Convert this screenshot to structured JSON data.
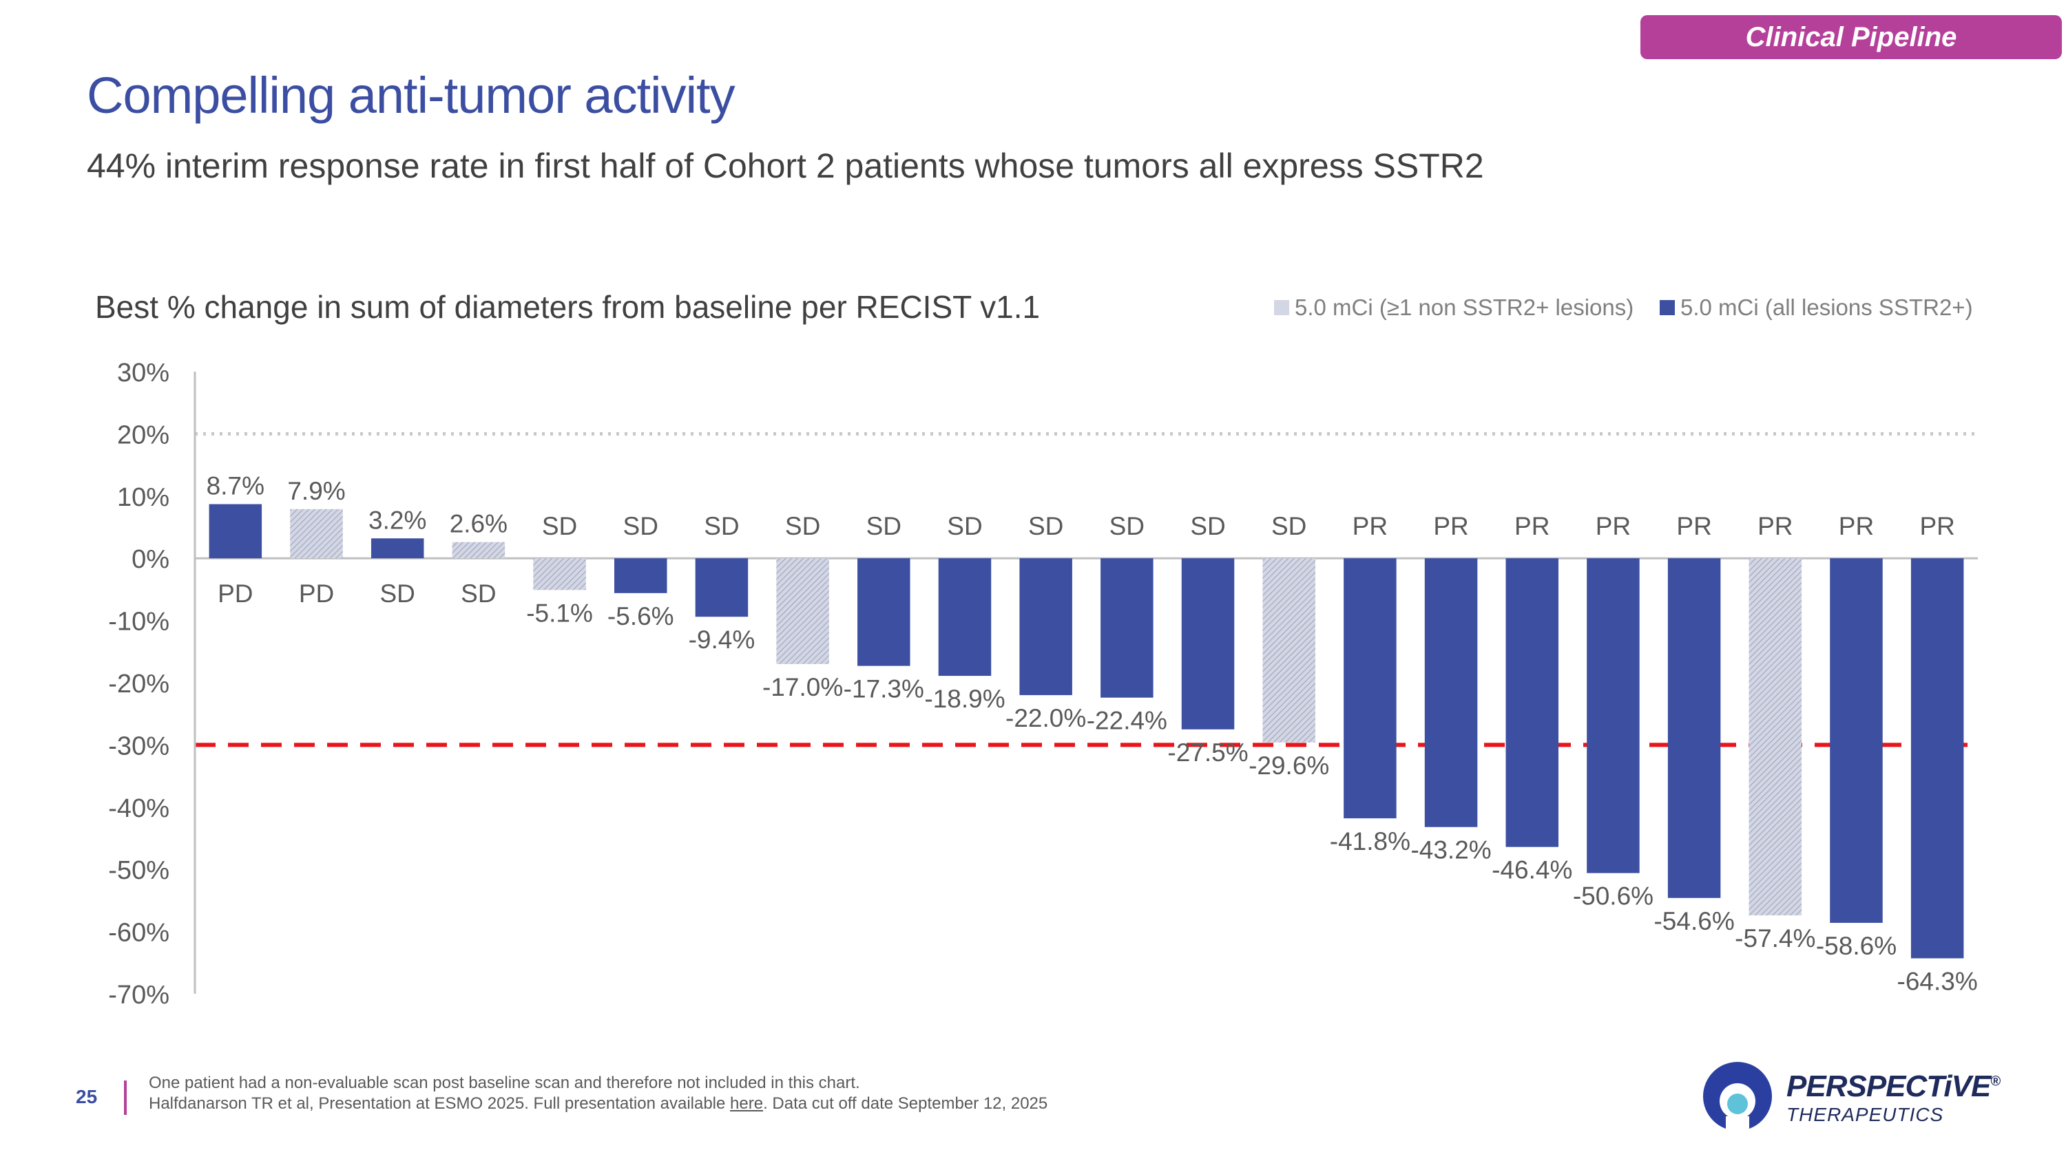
{
  "header": {
    "section_tag": "Clinical Pipeline",
    "title": "Compelling anti-tumor activity",
    "subtitle": "44% interim response rate in first half of Cohort 2 patients whose tumors all express SSTR2"
  },
  "chart_data": {
    "type": "bar",
    "title": "Best % change in sum of diameters from baseline per RECIST v1.1",
    "ylabel": "",
    "xlabel": "",
    "ylim": [
      -70,
      30
    ],
    "yticks": [
      30,
      20,
      10,
      0,
      -10,
      -20,
      -30,
      -40,
      -50,
      -60,
      -70
    ],
    "ytick_labels": [
      "30%",
      "20%",
      "10%",
      "0%",
      "-10%",
      "-20%",
      "-30%",
      "-40%",
      "-50%",
      "-60%",
      "-70%"
    ],
    "legend": [
      {
        "label": "5.0 mCi (≥1 non SSTR2+ lesions)",
        "style": "hatched",
        "color": "#c9cde0"
      },
      {
        "label": "5.0 mCi (all lesions SSTR2+)",
        "style": "solid",
        "color": "#3c4fa1"
      }
    ],
    "reference_lines": [
      {
        "value": 20,
        "style": "dotted",
        "color": "#c8c8c8"
      },
      {
        "value": -30,
        "style": "dashed",
        "color": "#e8151b"
      }
    ],
    "values": [
      8.7,
      7.9,
      3.2,
      2.6,
      -5.1,
      -5.6,
      -9.4,
      -17.0,
      -17.3,
      -18.9,
      -22.0,
      -22.4,
      -27.5,
      -29.6,
      -41.8,
      -43.2,
      -46.4,
      -50.6,
      -54.6,
      -57.4,
      -58.6,
      -64.3
    ],
    "value_labels": [
      "8.7%",
      "7.9%",
      "3.2%",
      "2.6%",
      "-5.1%",
      "-5.6%",
      "-9.4%",
      "-17.0%",
      "-17.3%",
      "-18.9%",
      "-22.0%",
      "-22.4%",
      "-27.5%",
      "-29.6%",
      "-41.8%",
      "-43.2%",
      "-46.4%",
      "-50.6%",
      "-54.6%",
      "-57.4%",
      "-58.6%",
      "-64.3%"
    ],
    "responses": [
      "PD",
      "PD",
      "SD",
      "SD",
      "SD",
      "SD",
      "SD",
      "SD",
      "SD",
      "SD",
      "SD",
      "SD",
      "SD",
      "SD",
      "PR",
      "PR",
      "PR",
      "PR",
      "PR",
      "PR",
      "PR",
      "PR"
    ],
    "series_index": [
      1,
      0,
      1,
      0,
      0,
      1,
      1,
      0,
      1,
      1,
      1,
      1,
      1,
      0,
      1,
      1,
      1,
      1,
      1,
      0,
      1,
      1
    ]
  },
  "footer": {
    "page_number": "25",
    "note_1": "One patient had a non-evaluable scan post baseline scan and therefore not included in this chart.",
    "note_2_pre": "Halfdanarson TR et al, Presentation at ESMO 2025. Full presentation available ",
    "note_2_link": "here",
    "note_2_post": ". Data cut off date September 12, 2025",
    "logo_name": "PERSPECTiVE",
    "logo_reg": "®",
    "logo_sub": "THERAPEUTICS"
  }
}
